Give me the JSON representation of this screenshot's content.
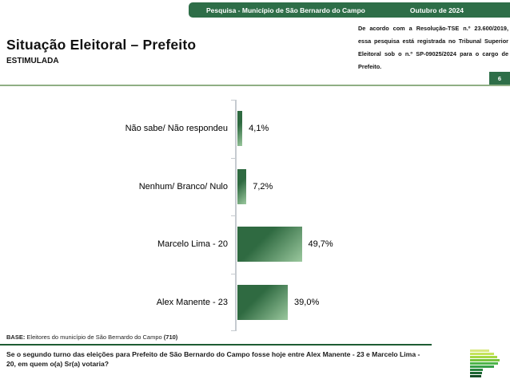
{
  "banner": {
    "left_text": "Pesquisa - Município de São Bernardo do Campo",
    "right_text": "Outubro de 2024"
  },
  "title_block": {
    "title": "Situação Eleitoral – Prefeito",
    "subtitle": "ESTIMULADA"
  },
  "legal": {
    "text": "De acordo com a Resolução-TSE n.º 23.600/2019, essa pesquisa está registrada no Tribunal Superior Eleitoral sob o n.º SP-09025/2024 para o cargo de Prefeito.",
    "page_number": "6"
  },
  "chart_data": {
    "type": "bar",
    "orientation": "horizontal",
    "categories": [
      "Não sabe/ Não respondeu",
      "Nenhum/ Branco/ Nulo",
      "Marcelo Lima - 20",
      "Alex Manente - 23"
    ],
    "values": [
      4.1,
      7.2,
      49.7,
      39.0
    ],
    "value_labels": [
      "4,1%",
      "7,2%",
      "49,7%",
      "39,0%"
    ],
    "title": "",
    "xlabel": "",
    "ylabel": "",
    "xlim": [
      0,
      60
    ],
    "grid": false,
    "legend": false,
    "bar_gradient_dark": "#2f6a41",
    "bar_gradient_light": "#9bc89e"
  },
  "footer": {
    "base_prefix": "BASE:",
    "base_text": " Eleitores do município de São Bernardo do Campo ",
    "base_count": "(710)",
    "question": "Se o segundo turno das eleições para Prefeito de São Bernardo do Campo fosse hoje entre Alex Manente - 23 e Marcelo Lima - 20, em quem o(a) Sr(a) votaria?"
  },
  "colors": {
    "banner_green": "#2e6e48",
    "divider_light_green": "#8fae84",
    "divider_dark_green": "#1e5c33",
    "axis_gray": "#c6cbd0"
  },
  "logo": {
    "name": "parana-pesquisas-logo",
    "stripe_colors": [
      "#d9e881",
      "#c6e35c",
      "#a5d944",
      "#77c43e",
      "#4fb54a",
      "#37a047",
      "#2a8440",
      "#1d6634",
      "#154d27"
    ],
    "stripe_widths": [
      24,
      30,
      34,
      37,
      35,
      30,
      16,
      15,
      14
    ]
  }
}
